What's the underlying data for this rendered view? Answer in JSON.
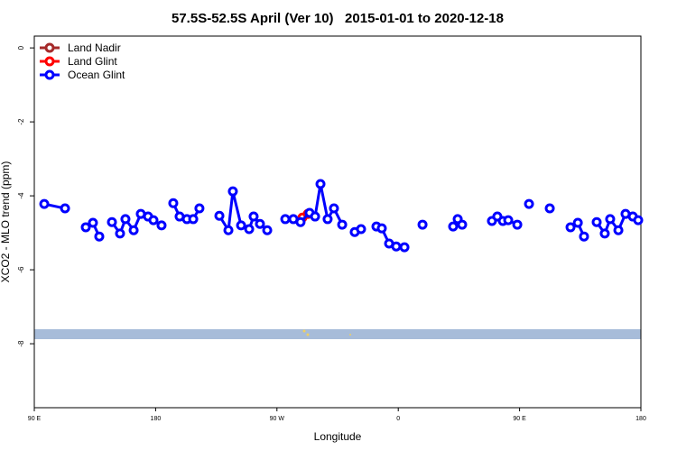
{
  "chart_data": {
    "type": "line",
    "title": "57.5S-52.5S April (Ver 10)   2015-01-01 to 2020-12-18",
    "x_label": "Longitude",
    "y_label": "XCO2 - MLO trend (ppm)",
    "xlim": [
      90,
      540
    ],
    "ylim": [
      -9.73,
      0.32
    ],
    "xticks": [
      {
        "value": 90,
        "label": "90 E"
      },
      180,
      {
        "value": 270,
        "label": "90 W"
      },
      {
        "value": 360,
        "label": "0"
      },
      {
        "value": 450,
        "label": "90 E"
      },
      {
        "value": 540,
        "label": "180"
      }
    ],
    "yticks": [
      0,
      -2,
      -4,
      -6,
      -8
    ],
    "legend": "top-left",
    "series": [
      {
        "name": "Land Nadir",
        "color": "#a52a2a",
        "x": [],
        "values": []
      },
      {
        "name": "Land Glint",
        "color": "#ff0000",
        "x": [
          288.9,
          292.9
        ],
        "values": [
          -4.59,
          -4.49
        ]
      },
      {
        "name": "Ocean Glint",
        "color": "#0000ff",
        "x": [
          97.4,
          112.8,
          null,
          128.2,
          133.5,
          138.2,
          null,
          147.6,
          153.6,
          157.6,
          163.7,
          169.0,
          174.4,
          178.4,
          184.4,
          null,
          193.1,
          197.8,
          203.2,
          207.9,
          212.5,
          null,
          227.3,
          234.0,
          237.3,
          243.4,
          249.4,
          252.7,
          257.4,
          262.8,
          null,
          276.2,
          282.2,
          287.5,
          294.2,
          298.3,
          302.3,
          307.6,
          312.3,
          318.4,
          null,
          327.7,
          332.4,
          null,
          343.8,
          347.8,
          353.2,
          358.5,
          364.6,
          null,
          378.0,
          null,
          400.7,
          404.1,
          407.4,
          null,
          429.5,
          433.5,
          437.6,
          441.6,
          448.3,
          null,
          457.0,
          null,
          472.4,
          null,
          487.8,
          493.2,
          497.8,
          null,
          507.2,
          513.2,
          517.2,
          523.3,
          528.6,
          534.0,
          538.0
        ],
        "values": [
          -4.22,
          -4.34,
          null,
          -4.85,
          -4.73,
          -5.1,
          null,
          -4.71,
          -5.02,
          -4.63,
          -4.93,
          -4.49,
          -4.56,
          -4.66,
          -4.8,
          null,
          -4.2,
          -4.56,
          -4.63,
          -4.63,
          -4.34,
          null,
          -4.54,
          -4.93,
          -3.88,
          -4.8,
          -4.9,
          -4.56,
          -4.76,
          -4.93,
          null,
          -4.63,
          -4.63,
          -4.71,
          -4.46,
          -4.56,
          -3.68,
          -4.63,
          -4.34,
          -4.78,
          null,
          -4.98,
          -4.9,
          null,
          -4.83,
          -4.88,
          -5.29,
          -5.37,
          -5.39,
          null,
          -4.78,
          null,
          -4.83,
          -4.63,
          -4.78,
          null,
          -4.68,
          -4.56,
          -4.68,
          -4.66,
          -4.78,
          null,
          -4.22,
          null,
          -4.34,
          null,
          -4.85,
          -4.73,
          -5.1,
          null,
          -4.71,
          -5.02,
          -4.63,
          -4.93,
          -4.49,
          -4.56,
          -4.66
        ]
      }
    ]
  }
}
